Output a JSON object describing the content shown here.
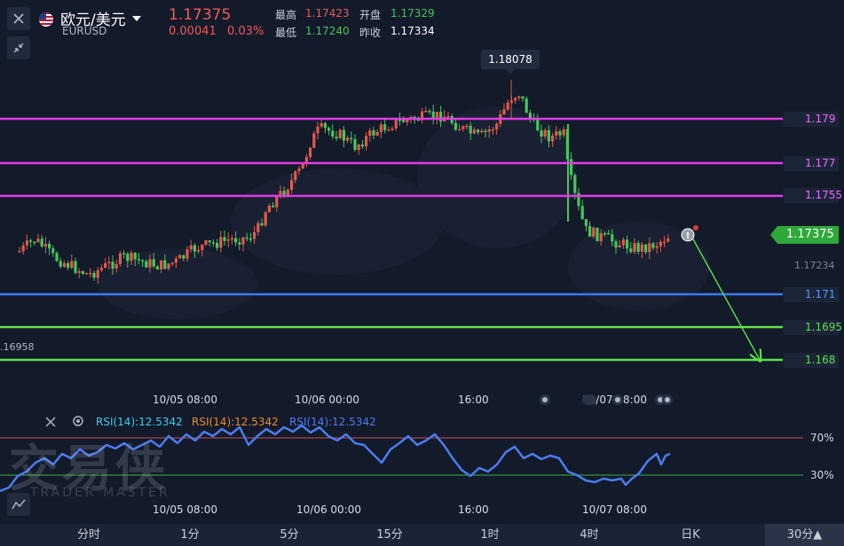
{
  "header": {
    "pair_name": "欧元/美元",
    "symbol": "EURUSD",
    "price": "1.17375",
    "change": "0.00041",
    "change_pct": "0.03%",
    "high_label": "最高",
    "high": "1.17423",
    "low_label": "最低",
    "low": "1.17240",
    "open_label": "开盘",
    "open": "1.17329",
    "prev_close_label": "昨收",
    "prev_close": "1.17334"
  },
  "chart": {
    "peak_label": "1.18078",
    "current_price_tag": "1.17375",
    "faint_price": "1.17234",
    "left_price": ".16958",
    "levels": [
      {
        "label": "1.179",
        "color": "#e23ae6",
        "text_color": "#e86aff"
      },
      {
        "label": "1.177",
        "color": "#e23ae6",
        "text_color": "#e86aff"
      },
      {
        "label": "1.1755",
        "color": "#e23ae6",
        "text_color": "#e86aff"
      },
      {
        "label": "1.171",
        "color": "#3b7cf0",
        "text_color": "#5a95ff"
      },
      {
        "label": "1.1695",
        "color": "#5ee04a",
        "text_color": "#5ee04a"
      },
      {
        "label": "1.168",
        "color": "#5ee04a",
        "text_color": "#5ee04a"
      }
    ],
    "x_labels": [
      "10/05 08:00",
      "10/06 00:00",
      "16:00",
      "10/07 08:00"
    ]
  },
  "rsi": {
    "label1": "RSI(14):12.5342",
    "label2": "RSI(14):12.5342",
    "label3": "RSI(14):12.5342",
    "level_70": "70%",
    "level_30": "30%",
    "x_labels": [
      "10/05 08:00",
      "10/06 00:00",
      "16:00",
      "10/07 08:00"
    ]
  },
  "watermark": {
    "cn": "交易侠",
    "en": "TRADER MASTER"
  },
  "timeframes": [
    "分时",
    "1分",
    "5分",
    "15分",
    "1时",
    "4时",
    "日K",
    "30分▲"
  ],
  "colors": {
    "up": "#e05a4a",
    "down": "#46c75a",
    "bg": "#131a2a"
  }
}
